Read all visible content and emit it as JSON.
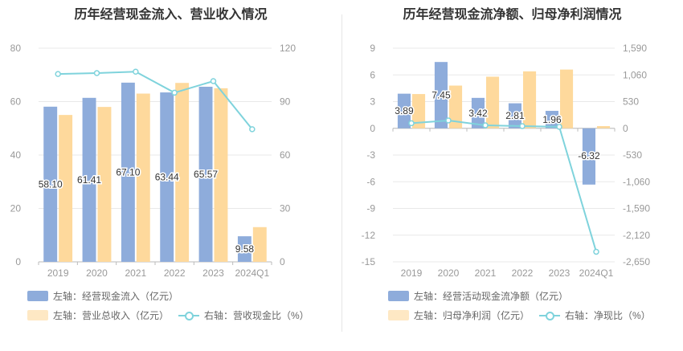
{
  "colors": {
    "bar1": "#8eacdb",
    "bar2": "#fed99c",
    "line": "#7fd3dc",
    "grid": "#e8e8e8",
    "axis": "#999999"
  },
  "chart_data": [
    {
      "type": "bar",
      "title": "历年经营现金流入、营业收入情况",
      "categories": [
        "2019",
        "2020",
        "2021",
        "2022",
        "2023",
        "2024Q1"
      ],
      "left_ticks": [
        "0",
        "20",
        "40",
        "60",
        "80"
      ],
      "right_ticks": [
        "0",
        "30",
        "60",
        "90",
        "120"
      ],
      "ylim_left": [
        0,
        80
      ],
      "ylim_right": [
        0,
        120
      ],
      "series": [
        {
          "name": "左轴：经营现金流入（亿元）",
          "axis": "left",
          "kind": "bar",
          "values": [
            58.1,
            61.41,
            67.1,
            63.44,
            65.57,
            9.58
          ],
          "labels": [
            "58.10",
            "61.41",
            "67.10",
            "63.44",
            "65.57",
            "9.58"
          ]
        },
        {
          "name": "左轴：营业总收入（亿元）",
          "axis": "left",
          "kind": "bar",
          "values": [
            55.0,
            58.0,
            63.0,
            67.0,
            65.0,
            13.0
          ]
        },
        {
          "name": "右轴：营收现金比（%）",
          "axis": "right",
          "kind": "line",
          "values": [
            105.5,
            106.0,
            106.8,
            95.0,
            101.5,
            74.5
          ]
        }
      ]
    },
    {
      "type": "bar",
      "title": "历年经营现金流净额、归母净利润情况",
      "categories": [
        "2019",
        "2020",
        "2021",
        "2022",
        "2023",
        "2024Q1"
      ],
      "left_ticks": [
        "9",
        "6",
        "3",
        "0",
        "-3",
        "-6",
        "-9",
        "-12",
        "-15"
      ],
      "right_ticks": [
        "1,590",
        "1,060",
        "530",
        "0",
        "-530",
        "-1,060",
        "-1,590",
        "-2,120",
        "-2,650"
      ],
      "ylim_left": [
        -15,
        9
      ],
      "ylim_right": [
        -2650,
        1590
      ],
      "series": [
        {
          "name": "左轴：经营活动现金流净额（亿元）",
          "axis": "left",
          "kind": "bar",
          "values": [
            3.89,
            7.45,
            3.42,
            2.81,
            1.96,
            -6.32
          ],
          "labels": [
            "3.89",
            "7.45",
            "3.42",
            "2.81",
            "1.96",
            "-6.32"
          ]
        },
        {
          "name": "左轴：归母净利润（亿元）",
          "axis": "left",
          "kind": "bar",
          "values": [
            3.85,
            4.8,
            5.8,
            6.4,
            6.6,
            0.25
          ]
        },
        {
          "name": "右轴：净现比（%）",
          "axis": "right",
          "kind": "line",
          "values": [
            101,
            155,
            59,
            44,
            30,
            -2450
          ]
        }
      ]
    }
  ]
}
